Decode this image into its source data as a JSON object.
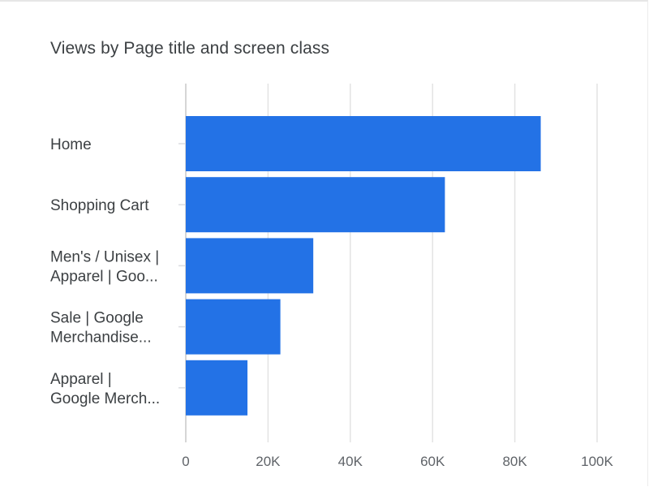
{
  "chart_data": {
    "type": "bar",
    "orientation": "horizontal",
    "title": "Views by Page title and screen class",
    "categories": [
      [
        "Home"
      ],
      [
        "Shopping Cart"
      ],
      [
        "Men's / Unisex |",
        "Apparel | Goo..."
      ],
      [
        "Sale | Google",
        "Merchandise..."
      ],
      [
        "Apparel |",
        "Google Merch..."
      ]
    ],
    "values": [
      86300,
      63000,
      31000,
      23000,
      15000
    ],
    "xlim": [
      0,
      100000
    ],
    "x_ticks": [
      0,
      20000,
      40000,
      60000,
      80000,
      100000
    ],
    "x_tick_labels": [
      "0",
      "20K",
      "40K",
      "60K",
      "80K",
      "100K"
    ],
    "grid": true,
    "bar_color": "#2372e6",
    "grid_color": "#e3e3e3"
  }
}
